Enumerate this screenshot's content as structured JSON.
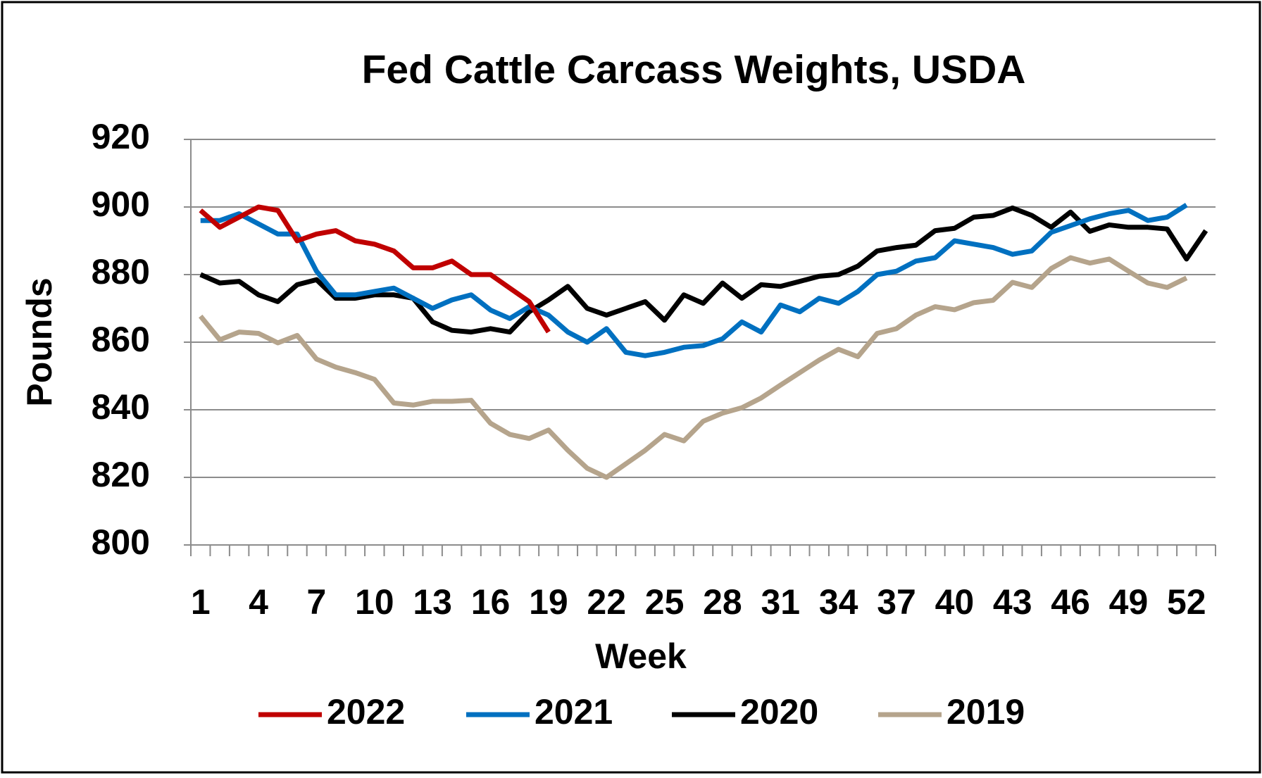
{
  "chart_data": {
    "type": "line",
    "title": "Fed Cattle Carcass Weights, USDA",
    "x_label": "Week",
    "y_label": "Pounds",
    "categories": [
      1,
      null,
      null,
      4,
      null,
      null,
      7,
      null,
      null,
      10,
      null,
      null,
      13,
      null,
      null,
      16,
      null,
      null,
      19,
      null,
      null,
      22,
      null,
      null,
      25,
      null,
      null,
      28,
      null,
      null,
      31,
      null,
      null,
      34,
      null,
      null,
      37,
      null,
      null,
      40,
      null,
      null,
      43,
      null,
      null,
      46,
      null,
      null,
      49,
      null,
      null,
      52,
      null
    ],
    "ylim": [
      800,
      920
    ],
    "yticks": [
      800,
      820,
      840,
      860,
      880,
      900,
      920
    ],
    "grid": true,
    "legend": "bottom",
    "series": [
      {
        "name": "2022",
        "color": "#c00000",
        "values": [
          899,
          894,
          897,
          900,
          899,
          890,
          892,
          893,
          890,
          889,
          887,
          882,
          882,
          884,
          880,
          880,
          876,
          872,
          863,
          null,
          null,
          null,
          null,
          null,
          null,
          null,
          null,
          null,
          null,
          null,
          null,
          null,
          null,
          null,
          null,
          null,
          null,
          null,
          null,
          null,
          null,
          null,
          null,
          null,
          null,
          null,
          null,
          null,
          null,
          null,
          null,
          null,
          null
        ]
      },
      {
        "name": "2021",
        "color": "#0070c0",
        "values": [
          896,
          896,
          898,
          895,
          892,
          892,
          881,
          874,
          874,
          875,
          876,
          873,
          870,
          872.5,
          874,
          869.5,
          867,
          870.5,
          868,
          863,
          860,
          864,
          857,
          856,
          857,
          858.5,
          859,
          861,
          866,
          863,
          871,
          869,
          873,
          871.5,
          875,
          880,
          881,
          884,
          885,
          890,
          889,
          888,
          886,
          887,
          892.5,
          894.5,
          896.5,
          898,
          899,
          896,
          897,
          900.6,
          null
        ]
      },
      {
        "name": "2020",
        "color": "#000000",
        "values": [
          880,
          877.5,
          878,
          874,
          872,
          877,
          878.5,
          873,
          873,
          874,
          874,
          873,
          866,
          863.5,
          863,
          864,
          863,
          869,
          872.5,
          876.5,
          870,
          868,
          870,
          872,
          866.5,
          874,
          871.5,
          877.5,
          873,
          877,
          876.5,
          878,
          879.5,
          880,
          882.5,
          887,
          888,
          888.7,
          893,
          893.7,
          897,
          897.5,
          899.7,
          897.5,
          894,
          898.5,
          892.8,
          894.7,
          894,
          894,
          893.5,
          884.6,
          893
        ]
      },
      {
        "name": "2019",
        "color": "#b5a48c",
        "values": [
          867.7,
          860.7,
          863,
          862.6,
          859.8,
          862,
          855,
          852.6,
          851,
          849,
          842,
          841.4,
          842.5,
          842.5,
          842.8,
          836,
          832.7,
          831.5,
          834,
          828,
          822.7,
          820,
          824,
          828,
          832.7,
          830.8,
          836.6,
          839,
          840.6,
          843.5,
          847.3,
          851,
          854.7,
          857.9,
          855.7,
          862.6,
          864,
          868,
          870.5,
          869.6,
          871.7,
          872.4,
          877.7,
          876.2,
          881.8,
          885,
          883.4,
          884.6,
          881,
          877.5,
          876.2,
          879,
          null
        ]
      }
    ]
  }
}
